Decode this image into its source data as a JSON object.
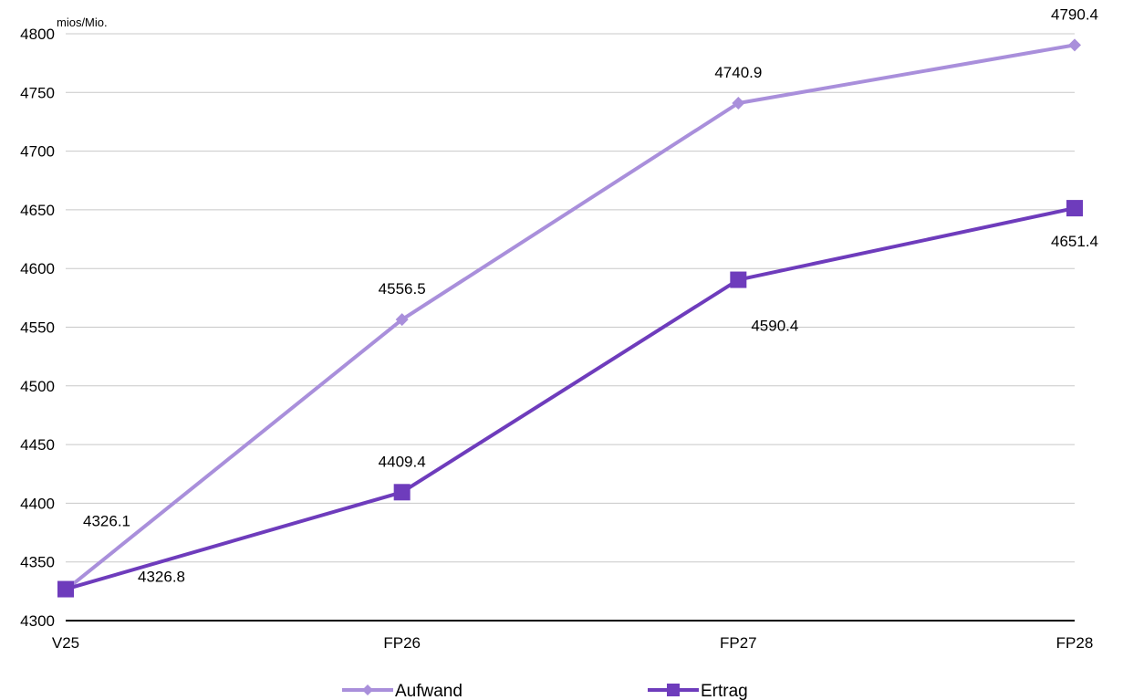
{
  "chart_data": {
    "type": "line",
    "unit_label": "mios/Mio.",
    "categories": [
      "V25",
      "FP26",
      "FP27",
      "FP28"
    ],
    "ylim": [
      4300,
      4800
    ],
    "yticks": [
      4300,
      4350,
      4400,
      4450,
      4500,
      4550,
      4600,
      4650,
      4700,
      4750,
      4800
    ],
    "grid": true,
    "legend_position": "bottom",
    "series": [
      {
        "name": "Aufwand",
        "values": [
          4326.1,
          4556.5,
          4740.9,
          4790.4
        ],
        "labels": [
          "4326.1",
          "4556.5",
          "4740.9",
          "4790.4"
        ],
        "color": "#A98FDB",
        "marker": "diamond"
      },
      {
        "name": "Ertrag",
        "values": [
          4326.8,
          4409.4,
          4590.4,
          4651.4
        ],
        "labels": [
          "4326.8",
          "4409.4",
          "4590.4",
          "4651.4"
        ],
        "color": "#6E3CBC",
        "marker": "square"
      }
    ]
  }
}
